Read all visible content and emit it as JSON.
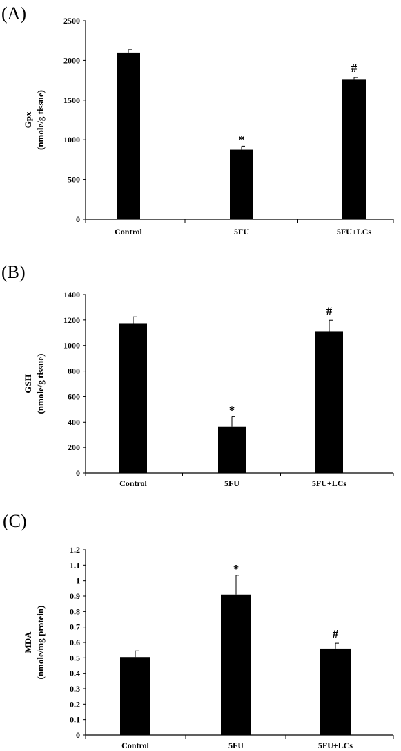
{
  "chart_data": [
    {
      "type": "bar",
      "panel_label": "(A)",
      "categories": [
        "Control",
        "5FU",
        "5FU+LCs"
      ],
      "values": [
        2100,
        875,
        1765
      ],
      "errors": [
        35,
        45,
        20
      ],
      "annotations": [
        "",
        "*",
        "#"
      ],
      "ylabel_line1": "Gpx",
      "ylabel_line2": "(nmole/g tissue)",
      "ylim": [
        0,
        2500
      ],
      "yticks": [
        0,
        500,
        1000,
        1500,
        2000,
        2500
      ],
      "ytick_labels": [
        "0",
        "500",
        "1000",
        "1500",
        "2000",
        "2500"
      ],
      "bar_color": "#000000"
    },
    {
      "type": "bar",
      "panel_label": "(B)",
      "categories": [
        "Control",
        "5FU",
        "5FU+LCs"
      ],
      "values": [
        1175,
        365,
        1110
      ],
      "errors": [
        50,
        78,
        88
      ],
      "annotations": [
        "",
        "*",
        "#"
      ],
      "ylabel_line1": "GSH",
      "ylabel_line2": "(nmole/g tissue)",
      "ylim": [
        0,
        1400
      ],
      "yticks": [
        0,
        200,
        400,
        600,
        800,
        1000,
        1200,
        1400
      ],
      "ytick_labels": [
        "0",
        "200",
        "400",
        "600",
        "800",
        "1000",
        "1200",
        "1400"
      ],
      "bar_color": "#000000"
    },
    {
      "type": "bar",
      "panel_label": "(C)",
      "categories": [
        "Control",
        "5FU",
        "5FU+LCs"
      ],
      "values": [
        0.505,
        0.91,
        0.56
      ],
      "errors": [
        0.04,
        0.125,
        0.035
      ],
      "annotations": [
        "",
        "*",
        "#"
      ],
      "ylabel_line1": "MDA",
      "ylabel_line2": "(nmole/mg protein)",
      "ylim": [
        0,
        1.2
      ],
      "yticks": [
        0,
        0.1,
        0.2,
        0.3,
        0.4,
        0.5,
        0.6,
        0.7,
        0.8,
        0.9,
        1.0,
        1.1,
        1.2
      ],
      "ytick_labels": [
        "0",
        "0.1",
        "0.2",
        "0.3",
        "0.4",
        "0.5",
        "0.6",
        "0.7",
        "0.8",
        "0.9",
        "1",
        "1.1",
        "1.2"
      ],
      "bar_color": "#000000"
    }
  ]
}
